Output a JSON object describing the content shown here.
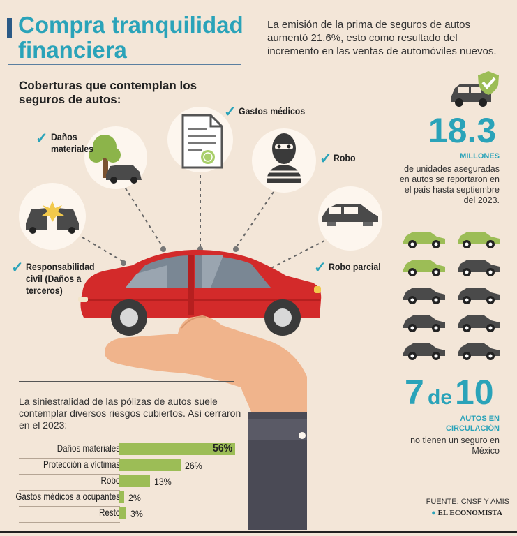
{
  "header": {
    "title": "Compra tranquilidad financiera",
    "intro": "La emisión de la prima de seguros de autos aumentó 21.6%, esto como resultado del incremento en las ventas de automóviles nuevos."
  },
  "coverages": {
    "heading": "Coberturas que contemplan los seguros de autos:",
    "check": "✓",
    "danos": "Daños materiales",
    "gastos": "Gastos médicos",
    "robo": "Robo",
    "resp": "Responsabilidad civil (Daños a terceros)",
    "robo_parcial": "Robo parcial"
  },
  "stats": {
    "insured_number": "18.3",
    "insured_unit": "MILLONES",
    "insured_text": "de unidades aseguradas en autos se reportaron en el país hasta septiembre del 2023.",
    "ratio_a": "7",
    "ratio_de": "de",
    "ratio_b": "10",
    "ratio_head": "AUTOS EN CIRCULACIÓN",
    "ratio_text": "no tienen un seguro en México",
    "cars_total": 10,
    "cars_uninsured": 7,
    "insured_color": "#9cbd56",
    "uninsured_color": "#4a4a4a"
  },
  "bars": {
    "intro": "La siniestralidad de las pólizas de autos suele contemplar diversos riesgos cubiertos. Así cerraron en el 2023:"
  },
  "chart_data": {
    "type": "bar",
    "orientation": "horizontal",
    "categories": [
      "Daños materiales",
      "Protección a víctimas",
      "Robo",
      "Gastos médicos a ocupantes",
      "Resto"
    ],
    "values": [
      56,
      26,
      13,
      2,
      3
    ],
    "value_labels": [
      "56%",
      "26%",
      "13%",
      "2%",
      "3%"
    ],
    "unit": "%",
    "bar_color": "#9cbd56"
  },
  "footer": {
    "source": "FUENTE: CNSF Y AMIS",
    "publisher": "EL ECONOMISTA"
  },
  "colors": {
    "accent": "#2aa3b9",
    "car_red": "#d32a2a",
    "background": "#f3e6d8"
  }
}
